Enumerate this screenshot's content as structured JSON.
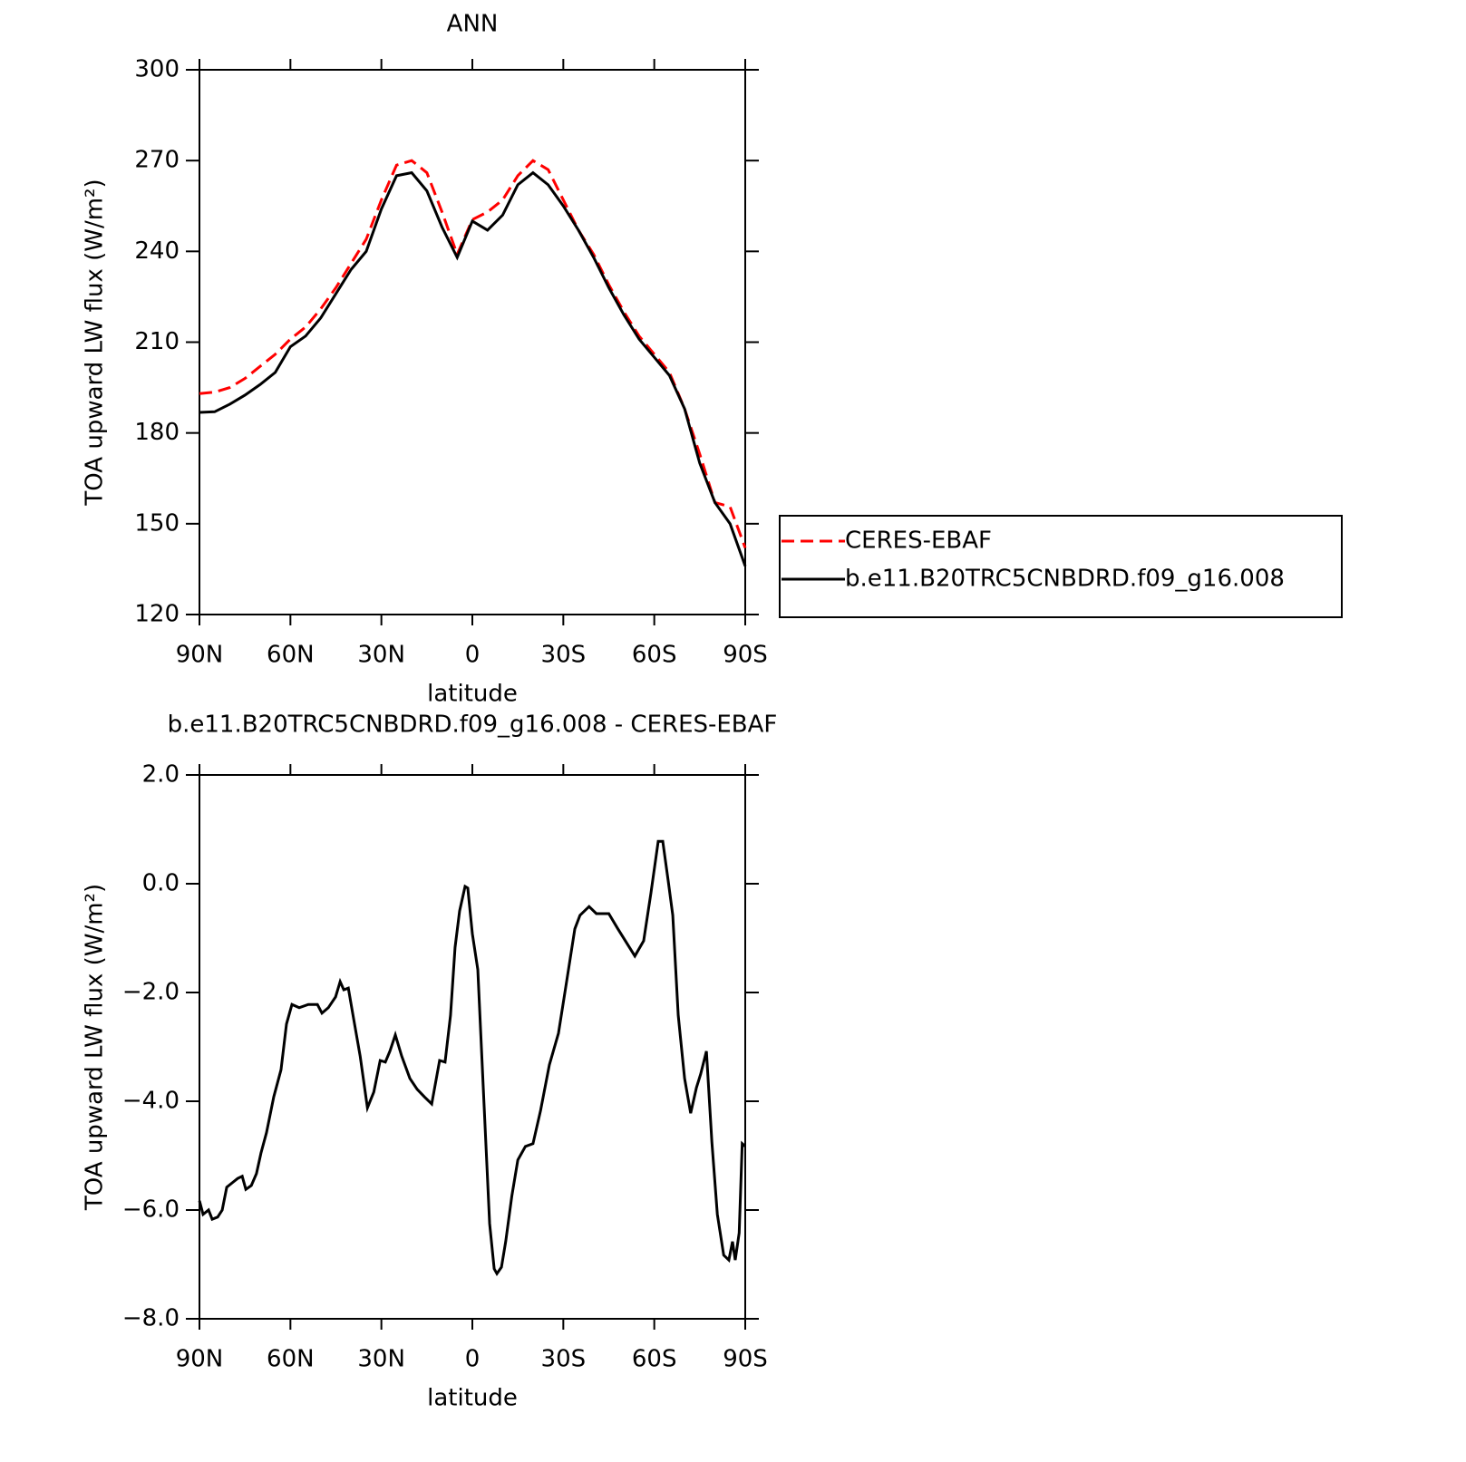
{
  "chart_data": [
    {
      "type": "line",
      "title": "ANN",
      "xlabel": "latitude",
      "ylabel": "TOA upward LW flux (W/m²)",
      "x": [
        90,
        85,
        80,
        75,
        70,
        65,
        60,
        55,
        50,
        45,
        40,
        35,
        30,
        25,
        20,
        15,
        10,
        5,
        0,
        -5,
        -10,
        -15,
        -20,
        -25,
        -30,
        -35,
        -40,
        -45,
        -50,
        -55,
        -60,
        -65,
        -70,
        -75,
        -80,
        -85,
        -90
      ],
      "series": [
        {
          "name": "CERES-EBAF",
          "color": "#ff0000",
          "linestyle": "dashed",
          "values": [
            193,
            193.5,
            195,
            198,
            202,
            206,
            211,
            215,
            221,
            228,
            236,
            244,
            257,
            268.5,
            270,
            266,
            253,
            239,
            250.5,
            253,
            257,
            265,
            270,
            267,
            257,
            247,
            239,
            229,
            220,
            212,
            206,
            200,
            188,
            173,
            157,
            155.6,
            142
          ]
        },
        {
          "name": "b.e11.B20TRC5CNBDRD.f09_g16.008",
          "color": "#000000",
          "linestyle": "solid",
          "values": [
            186.8,
            187,
            189.5,
            192.5,
            196,
            200,
            208.5,
            212,
            218,
            226,
            234,
            240,
            254,
            265,
            266,
            260,
            248,
            238,
            250,
            247,
            252,
            262,
            266,
            262,
            255,
            247,
            238,
            228,
            219,
            211,
            205,
            199,
            188,
            170,
            157,
            150,
            136
          ]
        }
      ],
      "xlim": [
        90,
        -90
      ],
      "xticks": [
        {
          "value": 90,
          "label": "90N"
        },
        {
          "value": 60,
          "label": "60N"
        },
        {
          "value": 30,
          "label": "30N"
        },
        0,
        {
          "value": -30,
          "label": "30S"
        },
        {
          "value": -60,
          "label": "60S"
        },
        {
          "value": -90,
          "label": "90S"
        }
      ],
      "ylim": [
        120,
        300
      ],
      "yticks": [
        120,
        150,
        180,
        210,
        240,
        270,
        300
      ],
      "legend": "right"
    },
    {
      "type": "line",
      "title": "b.e11.B20TRC5CNBDRD.f09_g16.008 - CERES-EBAF",
      "xlabel": "latitude",
      "ylabel": "TOA upward LW flux (W/m²)",
      "x": [
        90,
        88.8,
        87,
        85.8,
        84,
        82.5,
        81,
        79.2,
        77.4,
        75.9,
        74.7,
        72.9,
        71.2,
        69.7,
        67.9,
        65.5,
        63.1,
        61.3,
        59.5,
        57.1,
        54.1,
        51.1,
        49.6,
        47.5,
        45.1,
        43.6,
        42.4,
        40.9,
        39.1,
        37,
        34.6,
        32.5,
        30.4,
        28.7,
        27.2,
        25.4,
        23.3,
        20.6,
        18.2,
        15.8,
        13.4,
        10.8,
        9,
        7.2,
        5.7,
        4.2,
        2.4,
        1.5,
        0,
        -1.8,
        -3.6,
        -5.7,
        -7.2,
        -8.1,
        -9.6,
        -11,
        -13,
        -15,
        -17.5,
        -20,
        -22.5,
        -25.4,
        -28.4,
        -31,
        -33.8,
        -35.5,
        -38.5,
        -40.9,
        -45,
        -48,
        -53.6,
        -56.5,
        -58.9,
        -61.3,
        -62.8,
        -64.6,
        -66.1,
        -67.9,
        -70,
        -72,
        -73.9,
        -75.3,
        -77.2,
        -79,
        -80.8,
        -82.9,
        -84.6,
        -85.8,
        -86.7,
        -88,
        -89,
        -90
      ],
      "series": [
        {
          "color": "#000000",
          "linestyle": "solid",
          "values": [
            -5.83,
            -6.08,
            -6.0,
            -6.17,
            -6.13,
            -6.0,
            -5.58,
            -5.5,
            -5.42,
            -5.38,
            -5.62,
            -5.55,
            -5.33,
            -4.95,
            -4.58,
            -3.92,
            -3.42,
            -2.58,
            -2.22,
            -2.28,
            -2.22,
            -2.22,
            -2.38,
            -2.28,
            -2.08,
            -1.8,
            -1.95,
            -1.92,
            -2.5,
            -3.17,
            -4.12,
            -3.83,
            -3.25,
            -3.28,
            -3.08,
            -2.78,
            -3.17,
            -3.58,
            -3.78,
            -3.92,
            -4.05,
            -3.25,
            -3.28,
            -2.42,
            -1.17,
            -0.5,
            -0.05,
            -0.08,
            -0.92,
            -1.58,
            -3.75,
            -6.25,
            -7.08,
            -7.17,
            -7.05,
            -6.58,
            -5.75,
            -5.08,
            -4.83,
            -4.78,
            -4.17,
            -3.33,
            -2.75,
            -1.83,
            -0.83,
            -0.58,
            -0.42,
            -0.55,
            -0.55,
            -0.83,
            -1.33,
            -1.05,
            -0.17,
            0.78,
            0.78,
            0.05,
            -0.58,
            -2.42,
            -3.58,
            -4.22,
            -3.75,
            -3.5,
            -3.08,
            -4.75,
            -6.08,
            -6.83,
            -6.92,
            -6.58,
            -6.92,
            -6.42,
            -4.78,
            -4.83
          ]
        }
      ],
      "xlim": [
        90,
        -90
      ],
      "xticks": [
        {
          "value": 90,
          "label": "90N"
        },
        {
          "value": 60,
          "label": "60N"
        },
        {
          "value": 30,
          "label": "30N"
        },
        0,
        {
          "value": -30,
          "label": "30S"
        },
        {
          "value": -60,
          "label": "60S"
        },
        {
          "value": -90,
          "label": "90S"
        }
      ],
      "ylim": [
        -8,
        2
      ],
      "yticks": [
        {
          "value": -8,
          "label": "−8.0"
        },
        {
          "value": -6,
          "label": "−6.0"
        },
        {
          "value": -4,
          "label": "−4.0"
        },
        {
          "value": -2,
          "label": "−2.0"
        },
        {
          "value": 0,
          "label": "0.0"
        },
        {
          "value": 2,
          "label": "2.0"
        }
      ]
    }
  ]
}
